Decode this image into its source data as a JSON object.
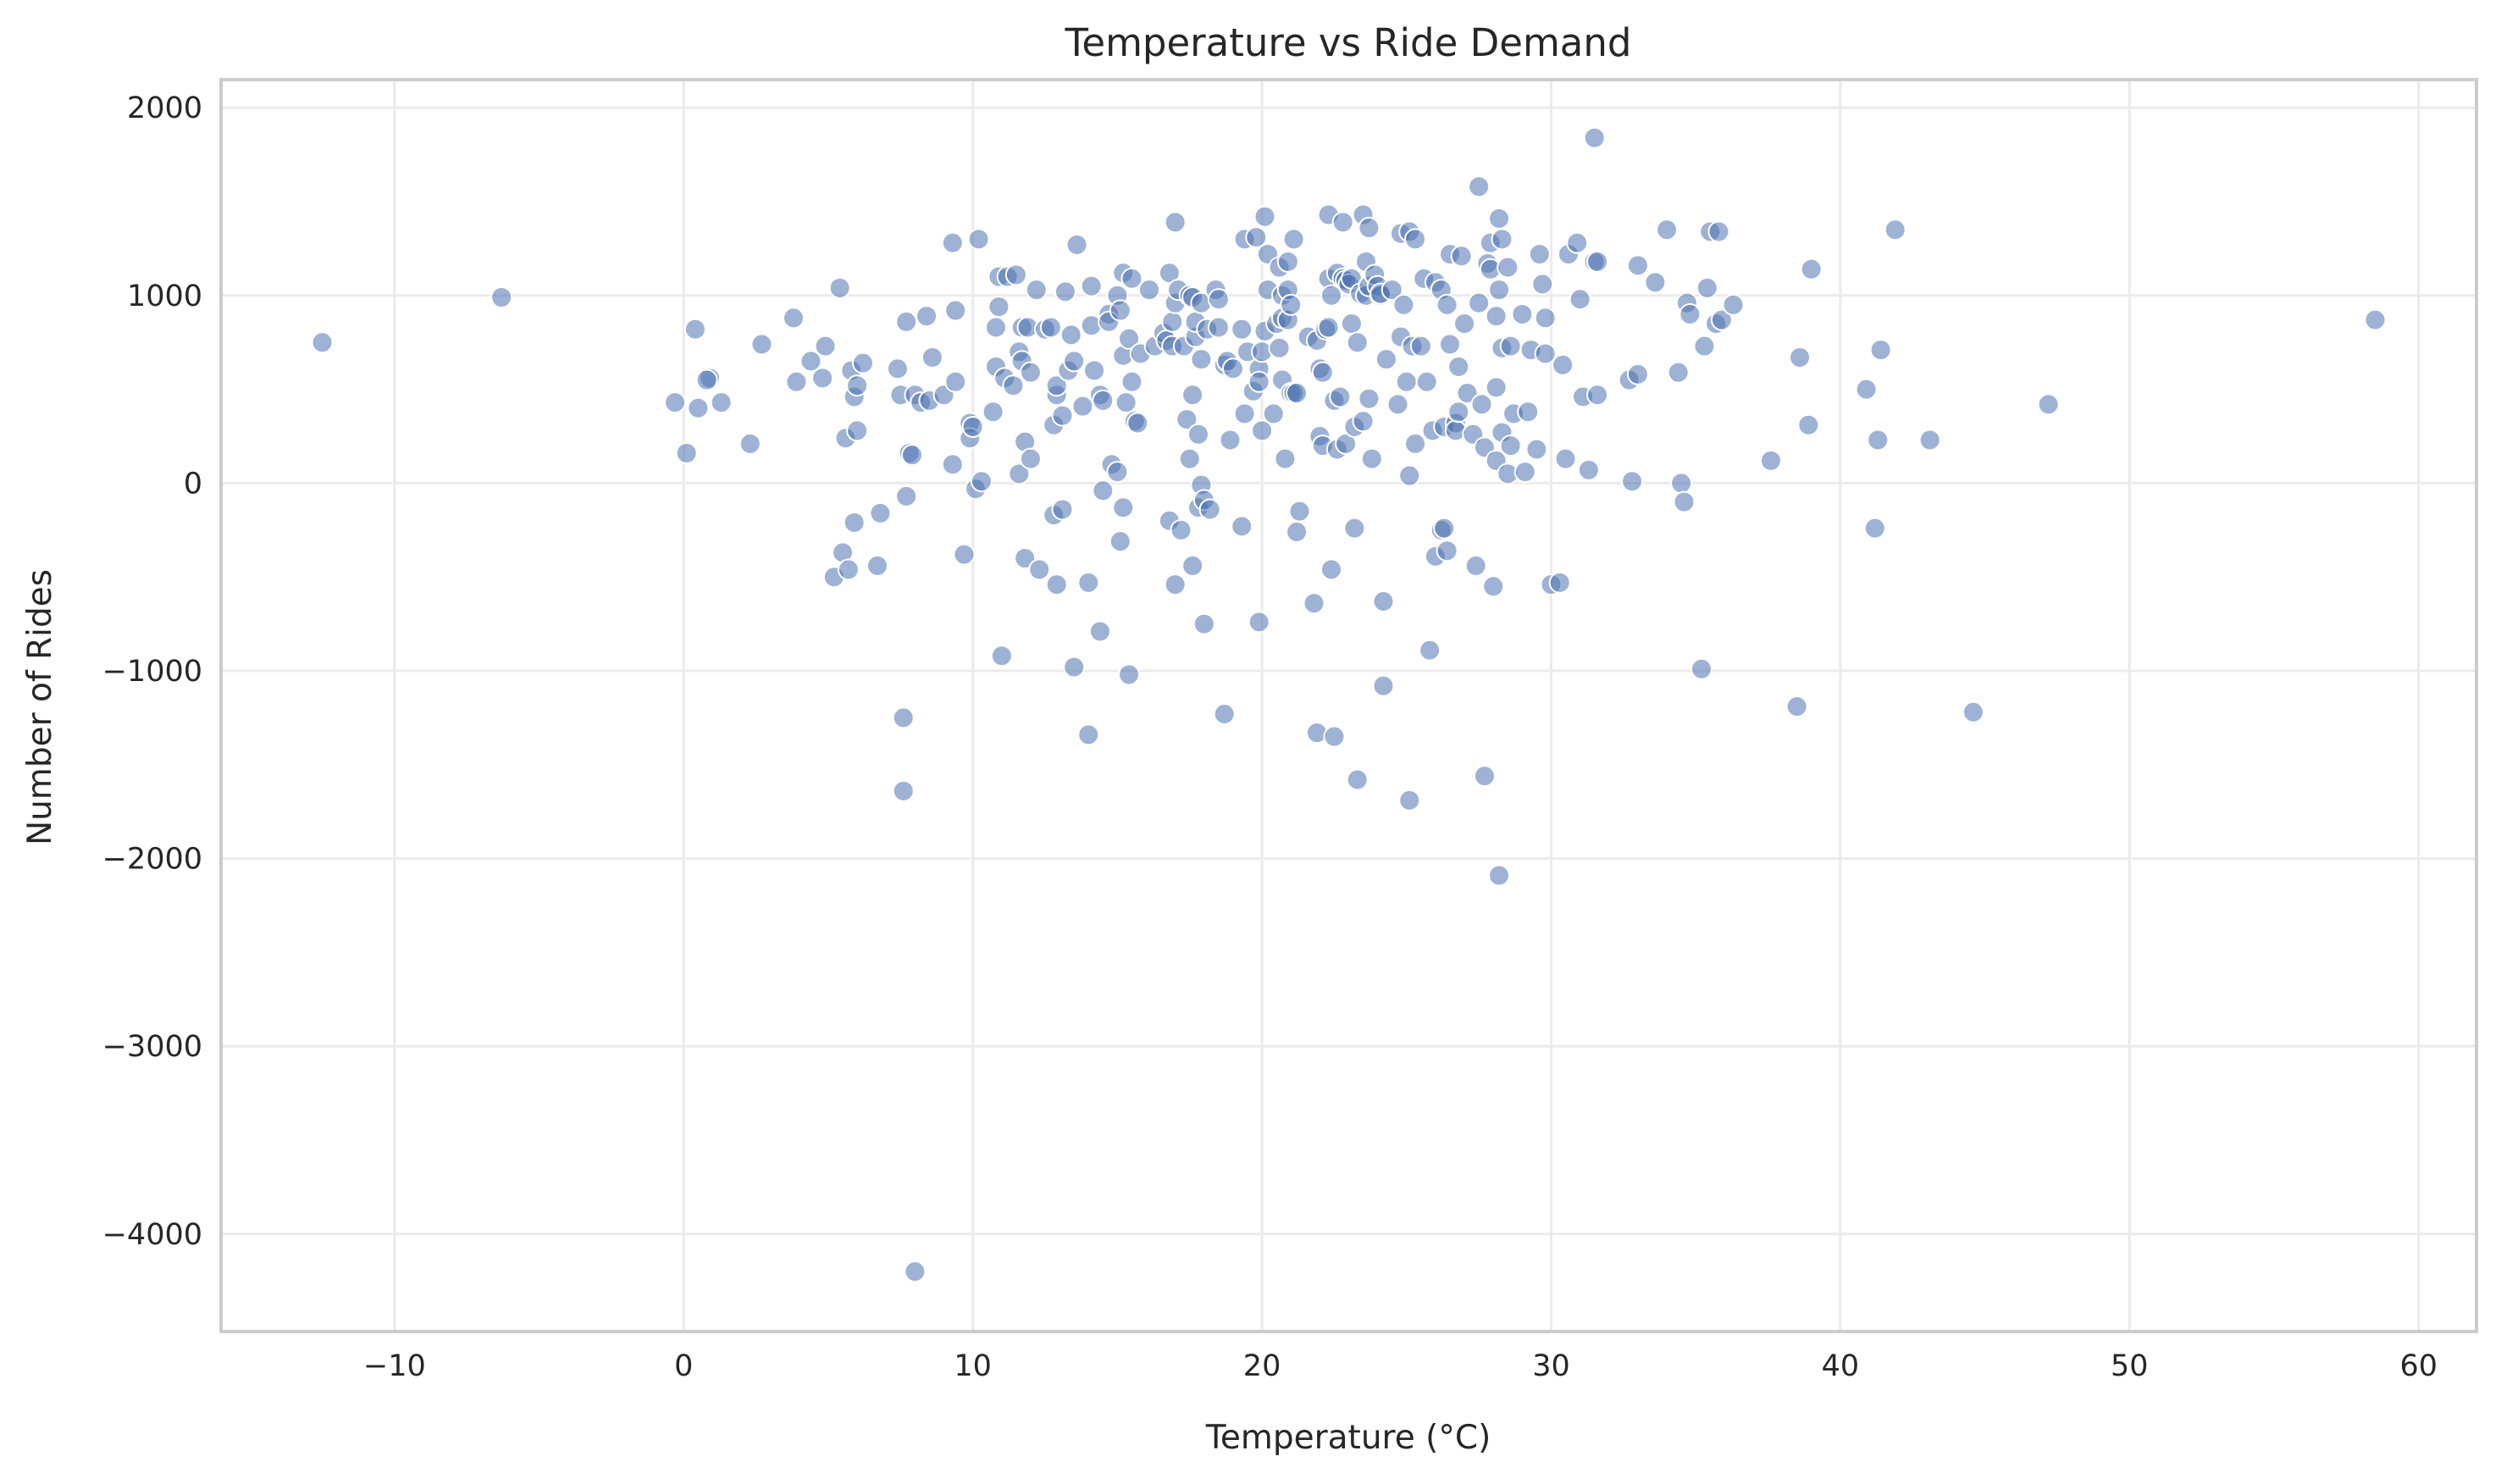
{
  "chart_data": {
    "type": "scatter",
    "title": "Temperature vs Ride Demand",
    "xlabel": "Temperature (°C)",
    "ylabel": "Number of Rides",
    "xlim": [
      -16.0,
      62.0
    ],
    "ylim": [
      -4520,
      2150
    ],
    "xticks": [
      -10,
      0,
      10,
      20,
      30,
      40,
      50,
      60
    ],
    "xtick_labels": [
      "−10",
      "0",
      "10",
      "20",
      "30",
      "40",
      "50",
      "60"
    ],
    "yticks": [
      -4000,
      -3000,
      -2000,
      -1000,
      0,
      1000,
      2000
    ],
    "ytick_labels": [
      "−4000",
      "−3000",
      "−2000",
      "−1000",
      "0",
      "1000",
      "2000"
    ],
    "grid": true,
    "marker_color": "#4c72b0",
    "points": [
      [
        -12.5,
        750
      ],
      [
        -6.3,
        990
      ],
      [
        -0.3,
        430
      ],
      [
        0.1,
        160
      ],
      [
        0.4,
        820
      ],
      [
        0.5,
        400
      ],
      [
        0.9,
        560
      ],
      [
        0.8,
        550
      ],
      [
        1.3,
        430
      ],
      [
        2.3,
        210
      ],
      [
        2.7,
        740
      ],
      [
        3.8,
        880
      ],
      [
        3.9,
        540
      ],
      [
        4.4,
        650
      ],
      [
        4.9,
        730
      ],
      [
        4.8,
        560
      ],
      [
        5.2,
        -500
      ],
      [
        5.4,
        1040
      ],
      [
        5.5,
        -370
      ],
      [
        5.6,
        240
      ],
      [
        5.7,
        -460
      ],
      [
        5.8,
        600
      ],
      [
        5.9,
        -210
      ],
      [
        5.9,
        460
      ],
      [
        6.0,
        280
      ],
      [
        6.0,
        520
      ],
      [
        6.2,
        640
      ],
      [
        6.7,
        -440
      ],
      [
        6.8,
        -160
      ],
      [
        7.4,
        610
      ],
      [
        7.5,
        470
      ],
      [
        7.6,
        -1640
      ],
      [
        7.6,
        -1250
      ],
      [
        7.7,
        -70
      ],
      [
        7.7,
        860
      ],
      [
        7.8,
        160
      ],
      [
        7.9,
        150
      ],
      [
        8.0,
        470
      ],
      [
        8.0,
        -4200
      ],
      [
        8.2,
        430
      ],
      [
        8.4,
        890
      ],
      [
        8.6,
        670
      ],
      [
        8.5,
        440
      ],
      [
        9.0,
        470
      ],
      [
        9.3,
        100
      ],
      [
        9.3,
        1280
      ],
      [
        9.4,
        540
      ],
      [
        9.4,
        920
      ],
      [
        9.7,
        -380
      ],
      [
        9.9,
        320
      ],
      [
        9.9,
        240
      ],
      [
        10.0,
        300
      ],
      [
        10.1,
        -30
      ],
      [
        10.3,
        10
      ],
      [
        10.2,
        1300
      ],
      [
        10.7,
        380
      ],
      [
        10.8,
        620
      ],
      [
        10.8,
        830
      ],
      [
        10.9,
        1100
      ],
      [
        10.9,
        940
      ],
      [
        11.0,
        -920
      ],
      [
        11.1,
        560
      ],
      [
        11.2,
        1100
      ],
      [
        11.4,
        520
      ],
      [
        11.5,
        1110
      ],
      [
        11.6,
        50
      ],
      [
        11.6,
        700
      ],
      [
        11.7,
        830
      ],
      [
        11.7,
        650
      ],
      [
        11.8,
        -400
      ],
      [
        11.8,
        220
      ],
      [
        11.9,
        830
      ],
      [
        12.0,
        130
      ],
      [
        12.0,
        590
      ],
      [
        12.2,
        1030
      ],
      [
        12.3,
        -460
      ],
      [
        12.5,
        820
      ],
      [
        12.7,
        830
      ],
      [
        12.8,
        -170
      ],
      [
        12.8,
        310
      ],
      [
        12.9,
        470
      ],
      [
        12.9,
        520
      ],
      [
        12.9,
        -540
      ],
      [
        13.1,
        -140
      ],
      [
        13.1,
        360
      ],
      [
        13.2,
        1020
      ],
      [
        13.3,
        600
      ],
      [
        13.4,
        790
      ],
      [
        13.5,
        -980
      ],
      [
        13.5,
        650
      ],
      [
        13.6,
        1270
      ],
      [
        13.8,
        410
      ],
      [
        14.0,
        -530
      ],
      [
        14.0,
        -1340
      ],
      [
        14.1,
        840
      ],
      [
        14.1,
        1050
      ],
      [
        14.2,
        600
      ],
      [
        14.4,
        -790
      ],
      [
        14.4,
        470
      ],
      [
        14.5,
        440
      ],
      [
        14.5,
        -40
      ],
      [
        14.7,
        900
      ],
      [
        14.7,
        860
      ],
      [
        14.8,
        100
      ],
      [
        15.0,
        60
      ],
      [
        15.0,
        1000
      ],
      [
        15.1,
        920
      ],
      [
        15.1,
        -310
      ],
      [
        15.2,
        680
      ],
      [
        15.2,
        -130
      ],
      [
        15.2,
        1120
      ],
      [
        15.3,
        430
      ],
      [
        15.4,
        770
      ],
      [
        15.4,
        -1020
      ],
      [
        15.5,
        540
      ],
      [
        15.5,
        1090
      ],
      [
        15.6,
        330
      ],
      [
        15.7,
        320
      ],
      [
        15.8,
        690
      ],
      [
        16.1,
        1030
      ],
      [
        16.3,
        730
      ],
      [
        16.6,
        800
      ],
      [
        16.7,
        760
      ],
      [
        16.8,
        1120
      ],
      [
        16.8,
        -200
      ],
      [
        16.9,
        860
      ],
      [
        16.9,
        730
      ],
      [
        17.0,
        960
      ],
      [
        17.0,
        -540
      ],
      [
        17.0,
        1390
      ],
      [
        17.1,
        1030
      ],
      [
        17.2,
        -250
      ],
      [
        17.3,
        730
      ],
      [
        17.4,
        340
      ],
      [
        17.5,
        1000
      ],
      [
        17.5,
        130
      ],
      [
        17.6,
        990
      ],
      [
        17.6,
        -440
      ],
      [
        17.6,
        470
      ],
      [
        17.7,
        780
      ],
      [
        17.7,
        860
      ],
      [
        17.8,
        -130
      ],
      [
        17.8,
        260
      ],
      [
        17.9,
        960
      ],
      [
        17.9,
        660
      ],
      [
        17.9,
        -10
      ],
      [
        18.0,
        -750
      ],
      [
        18.0,
        -90
      ],
      [
        18.1,
        820
      ],
      [
        18.2,
        -140
      ],
      [
        18.4,
        1030
      ],
      [
        18.5,
        830
      ],
      [
        18.5,
        980
      ],
      [
        18.7,
        -1230
      ],
      [
        18.7,
        630
      ],
      [
        18.8,
        650
      ],
      [
        18.9,
        230
      ],
      [
        19.0,
        610
      ],
      [
        19.3,
        -230
      ],
      [
        19.3,
        820
      ],
      [
        19.4,
        370
      ],
      [
        19.4,
        1300
      ],
      [
        19.5,
        700
      ],
      [
        19.7,
        490
      ],
      [
        19.8,
        1310
      ],
      [
        19.9,
        610
      ],
      [
        19.9,
        -740
      ],
      [
        19.9,
        540
      ],
      [
        20.0,
        700
      ],
      [
        20.0,
        280
      ],
      [
        20.1,
        1420
      ],
      [
        20.1,
        810
      ],
      [
        20.2,
        1030
      ],
      [
        20.2,
        1220
      ],
      [
        20.4,
        370
      ],
      [
        20.5,
        850
      ],
      [
        20.6,
        720
      ],
      [
        20.6,
        1150
      ],
      [
        20.7,
        550
      ],
      [
        20.7,
        880
      ],
      [
        20.7,
        1000
      ],
      [
        20.8,
        130
      ],
      [
        20.9,
        1180
      ],
      [
        20.9,
        870
      ],
      [
        20.9,
        1030
      ],
      [
        21.0,
        480
      ],
      [
        21.0,
        950
      ],
      [
        21.1,
        480
      ],
      [
        21.1,
        1300
      ],
      [
        21.2,
        480
      ],
      [
        21.2,
        -260
      ],
      [
        21.3,
        -150
      ],
      [
        21.6,
        780
      ],
      [
        21.8,
        -640
      ],
      [
        21.9,
        760
      ],
      [
        21.9,
        -1330
      ],
      [
        22.0,
        610
      ],
      [
        22.0,
        250
      ],
      [
        22.1,
        200
      ],
      [
        22.1,
        590
      ],
      [
        22.2,
        820
      ],
      [
        22.3,
        1090
      ],
      [
        22.3,
        830
      ],
      [
        22.3,
        1430
      ],
      [
        22.4,
        -460
      ],
      [
        22.4,
        1000
      ],
      [
        22.5,
        440
      ],
      [
        22.5,
        -1350
      ],
      [
        22.6,
        1120
      ],
      [
        22.6,
        180
      ],
      [
        22.7,
        460
      ],
      [
        22.8,
        1390
      ],
      [
        22.8,
        1090
      ],
      [
        22.9,
        210
      ],
      [
        22.9,
        1080
      ],
      [
        23.0,
        1060
      ],
      [
        23.1,
        1090
      ],
      [
        23.1,
        850
      ],
      [
        23.2,
        -240
      ],
      [
        23.2,
        300
      ],
      [
        23.3,
        750
      ],
      [
        23.3,
        -1580
      ],
      [
        23.4,
        1010
      ],
      [
        23.5,
        1430
      ],
      [
        23.5,
        330
      ],
      [
        23.6,
        1000
      ],
      [
        23.6,
        1180
      ],
      [
        23.7,
        1050
      ],
      [
        23.7,
        1360
      ],
      [
        23.7,
        450
      ],
      [
        23.8,
        130
      ],
      [
        23.9,
        1110
      ],
      [
        24.0,
        1050
      ],
      [
        24.1,
        1000
      ],
      [
        24.1,
        1010
      ],
      [
        24.2,
        -1080
      ],
      [
        24.2,
        -630
      ],
      [
        24.3,
        660
      ],
      [
        24.5,
        1030
      ],
      [
        24.7,
        420
      ],
      [
        24.8,
        1330
      ],
      [
        24.8,
        780
      ],
      [
        24.9,
        950
      ],
      [
        25.0,
        540
      ],
      [
        25.1,
        1340
      ],
      [
        25.1,
        40
      ],
      [
        25.1,
        -1690
      ],
      [
        25.2,
        730
      ],
      [
        25.3,
        1300
      ],
      [
        25.3,
        210
      ],
      [
        25.5,
        730
      ],
      [
        25.6,
        1090
      ],
      [
        25.7,
        540
      ],
      [
        25.8,
        -890
      ],
      [
        25.9,
        280
      ],
      [
        26.0,
        1070
      ],
      [
        26.0,
        -390
      ],
      [
        26.2,
        -250
      ],
      [
        26.2,
        1030
      ],
      [
        26.3,
        300
      ],
      [
        26.3,
        -240
      ],
      [
        26.4,
        950
      ],
      [
        26.4,
        -360
      ],
      [
        26.5,
        740
      ],
      [
        26.5,
        1220
      ],
      [
        26.7,
        320
      ],
      [
        26.7,
        280
      ],
      [
        26.8,
        380
      ],
      [
        26.8,
        620
      ],
      [
        26.9,
        1210
      ],
      [
        27.0,
        850
      ],
      [
        27.1,
        480
      ],
      [
        27.3,
        260
      ],
      [
        27.4,
        -440
      ],
      [
        27.5,
        960
      ],
      [
        27.5,
        1580
      ],
      [
        27.6,
        420
      ],
      [
        27.7,
        -1560
      ],
      [
        27.7,
        190
      ],
      [
        27.8,
        1170
      ],
      [
        27.9,
        1280
      ],
      [
        27.9,
        1140
      ],
      [
        28.0,
        -550
      ],
      [
        28.1,
        510
      ],
      [
        28.1,
        890
      ],
      [
        28.1,
        120
      ],
      [
        28.2,
        -2090
      ],
      [
        28.2,
        1410
      ],
      [
        28.2,
        1030
      ],
      [
        28.3,
        720
      ],
      [
        28.3,
        1300
      ],
      [
        28.3,
        270
      ],
      [
        28.5,
        1150
      ],
      [
        28.5,
        50
      ],
      [
        28.6,
        730
      ],
      [
        28.6,
        200
      ],
      [
        28.7,
        370
      ],
      [
        29.0,
        900
      ],
      [
        29.1,
        60
      ],
      [
        29.2,
        380
      ],
      [
        29.3,
        710
      ],
      [
        29.5,
        180
      ],
      [
        29.6,
        1220
      ],
      [
        29.7,
        1060
      ],
      [
        29.8,
        880
      ],
      [
        29.8,
        690
      ],
      [
        30.0,
        -540
      ],
      [
        30.3,
        -530
      ],
      [
        30.4,
        630
      ],
      [
        30.5,
        130
      ],
      [
        30.6,
        1220
      ],
      [
        30.9,
        1280
      ],
      [
        31.0,
        980
      ],
      [
        31.1,
        460
      ],
      [
        31.3,
        70
      ],
      [
        31.5,
        1840
      ],
      [
        31.5,
        1180
      ],
      [
        31.6,
        1180
      ],
      [
        31.6,
        470
      ],
      [
        32.7,
        550
      ],
      [
        32.8,
        10
      ],
      [
        33.0,
        580
      ],
      [
        33.0,
        1160
      ],
      [
        33.6,
        1070
      ],
      [
        34.0,
        1350
      ],
      [
        34.4,
        590
      ],
      [
        34.5,
        0
      ],
      [
        34.6,
        -100
      ],
      [
        34.7,
        960
      ],
      [
        34.8,
        900
      ],
      [
        35.2,
        -990
      ],
      [
        35.3,
        730
      ],
      [
        35.4,
        1040
      ],
      [
        35.5,
        1340
      ],
      [
        35.7,
        850
      ],
      [
        35.8,
        1340
      ],
      [
        35.9,
        870
      ],
      [
        36.3,
        950
      ],
      [
        37.6,
        120
      ],
      [
        38.5,
        -1190
      ],
      [
        38.6,
        670
      ],
      [
        38.9,
        310
      ],
      [
        39.0,
        1140
      ],
      [
        40.9,
        500
      ],
      [
        41.2,
        -240
      ],
      [
        41.3,
        230
      ],
      [
        41.4,
        710
      ],
      [
        41.9,
        1350
      ],
      [
        43.1,
        230
      ],
      [
        44.6,
        -1220
      ],
      [
        47.2,
        420
      ],
      [
        58.5,
        870
      ]
    ]
  }
}
